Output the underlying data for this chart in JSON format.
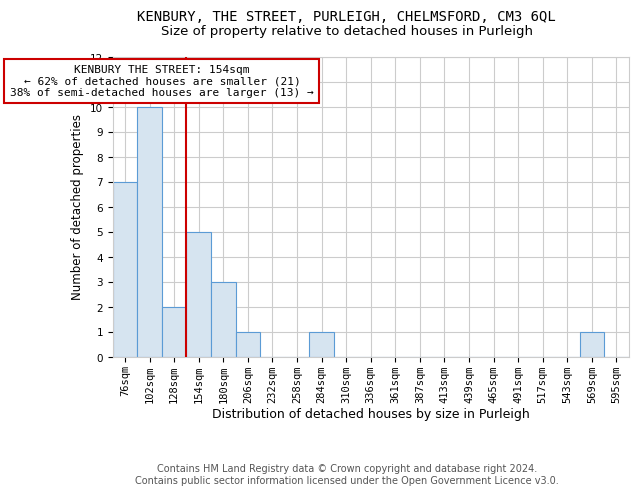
{
  "title": "KENBURY, THE STREET, PURLEIGH, CHELMSFORD, CM3 6QL",
  "subtitle": "Size of property relative to detached houses in Purleigh",
  "xlabel": "Distribution of detached houses by size in Purleigh",
  "ylabel": "Number of detached properties",
  "bins": [
    "76sqm",
    "102sqm",
    "128sqm",
    "154sqm",
    "180sqm",
    "206sqm",
    "232sqm",
    "258sqm",
    "284sqm",
    "310sqm",
    "336sqm",
    "361sqm",
    "387sqm",
    "413sqm",
    "439sqm",
    "465sqm",
    "491sqm",
    "517sqm",
    "543sqm",
    "569sqm",
    "595sqm"
  ],
  "values": [
    7,
    10,
    2,
    5,
    3,
    1,
    0,
    0,
    1,
    0,
    0,
    0,
    0,
    0,
    0,
    0,
    0,
    0,
    0,
    1,
    0
  ],
  "bar_color": "#d6e4f0",
  "bar_edge_color": "#5b9bd5",
  "red_line_index": 3,
  "annotation_title": "KENBURY THE STREET: 154sqm",
  "annotation_line1": "← 62% of detached houses are smaller (21)",
  "annotation_line2": "38% of semi-detached houses are larger (13) →",
  "annotation_box_color": "#ffffff",
  "annotation_box_edge_color": "#cc0000",
  "ylim": [
    0,
    12
  ],
  "yticks": [
    0,
    1,
    2,
    3,
    4,
    5,
    6,
    7,
    8,
    9,
    10,
    11,
    12
  ],
  "grid_color": "#cccccc",
  "footer1": "Contains HM Land Registry data © Crown copyright and database right 2024.",
  "footer2": "Contains public sector information licensed under the Open Government Licence v3.0.",
  "title_fontsize": 10,
  "subtitle_fontsize": 9.5,
  "xlabel_fontsize": 9,
  "ylabel_fontsize": 8.5,
  "tick_fontsize": 7.5,
  "footer_fontsize": 7,
  "annotation_fontsize": 8
}
